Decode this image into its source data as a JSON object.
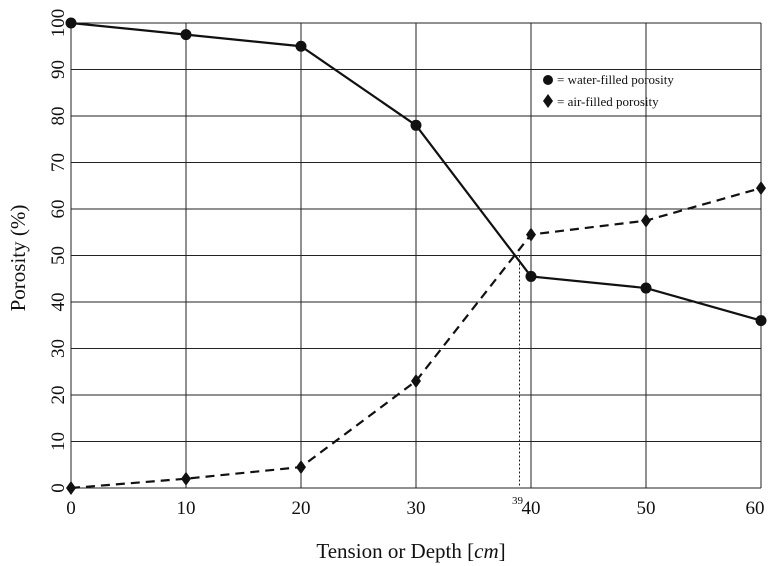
{
  "chart_data": {
    "type": "line",
    "title": "",
    "xlabel_main": "Tension or Depth [",
    "xlabel_unit": "cm",
    "xlabel_close": "]",
    "ylabel": "Porosity (%)",
    "xlim": [
      0,
      60
    ],
    "ylim": [
      0,
      100
    ],
    "x_ticks": [
      0,
      10,
      20,
      30,
      40,
      50,
      60
    ],
    "y_ticks": [
      0,
      10,
      20,
      30,
      40,
      50,
      60,
      70,
      80,
      90,
      100
    ],
    "grid": true,
    "legend_position": "top-right",
    "series": [
      {
        "name": "= water-filled  porosity",
        "marker": "circle",
        "line": "solid",
        "x": [
          0,
          10,
          20,
          30,
          40,
          50,
          60
        ],
        "y": [
          100,
          97.5,
          95,
          78,
          45.5,
          43,
          36
        ]
      },
      {
        "name": "= air-filled  porosity",
        "marker": "diamond",
        "line": "dashed",
        "x": [
          0,
          10,
          20,
          30,
          40,
          50,
          60
        ],
        "y": [
          0,
          2,
          4.5,
          23,
          54.5,
          57.5,
          64.5
        ]
      }
    ],
    "annotations": [
      {
        "text": "39",
        "x": 39,
        "y_from": 0,
        "y_to": 50,
        "style": "dotted"
      }
    ]
  }
}
